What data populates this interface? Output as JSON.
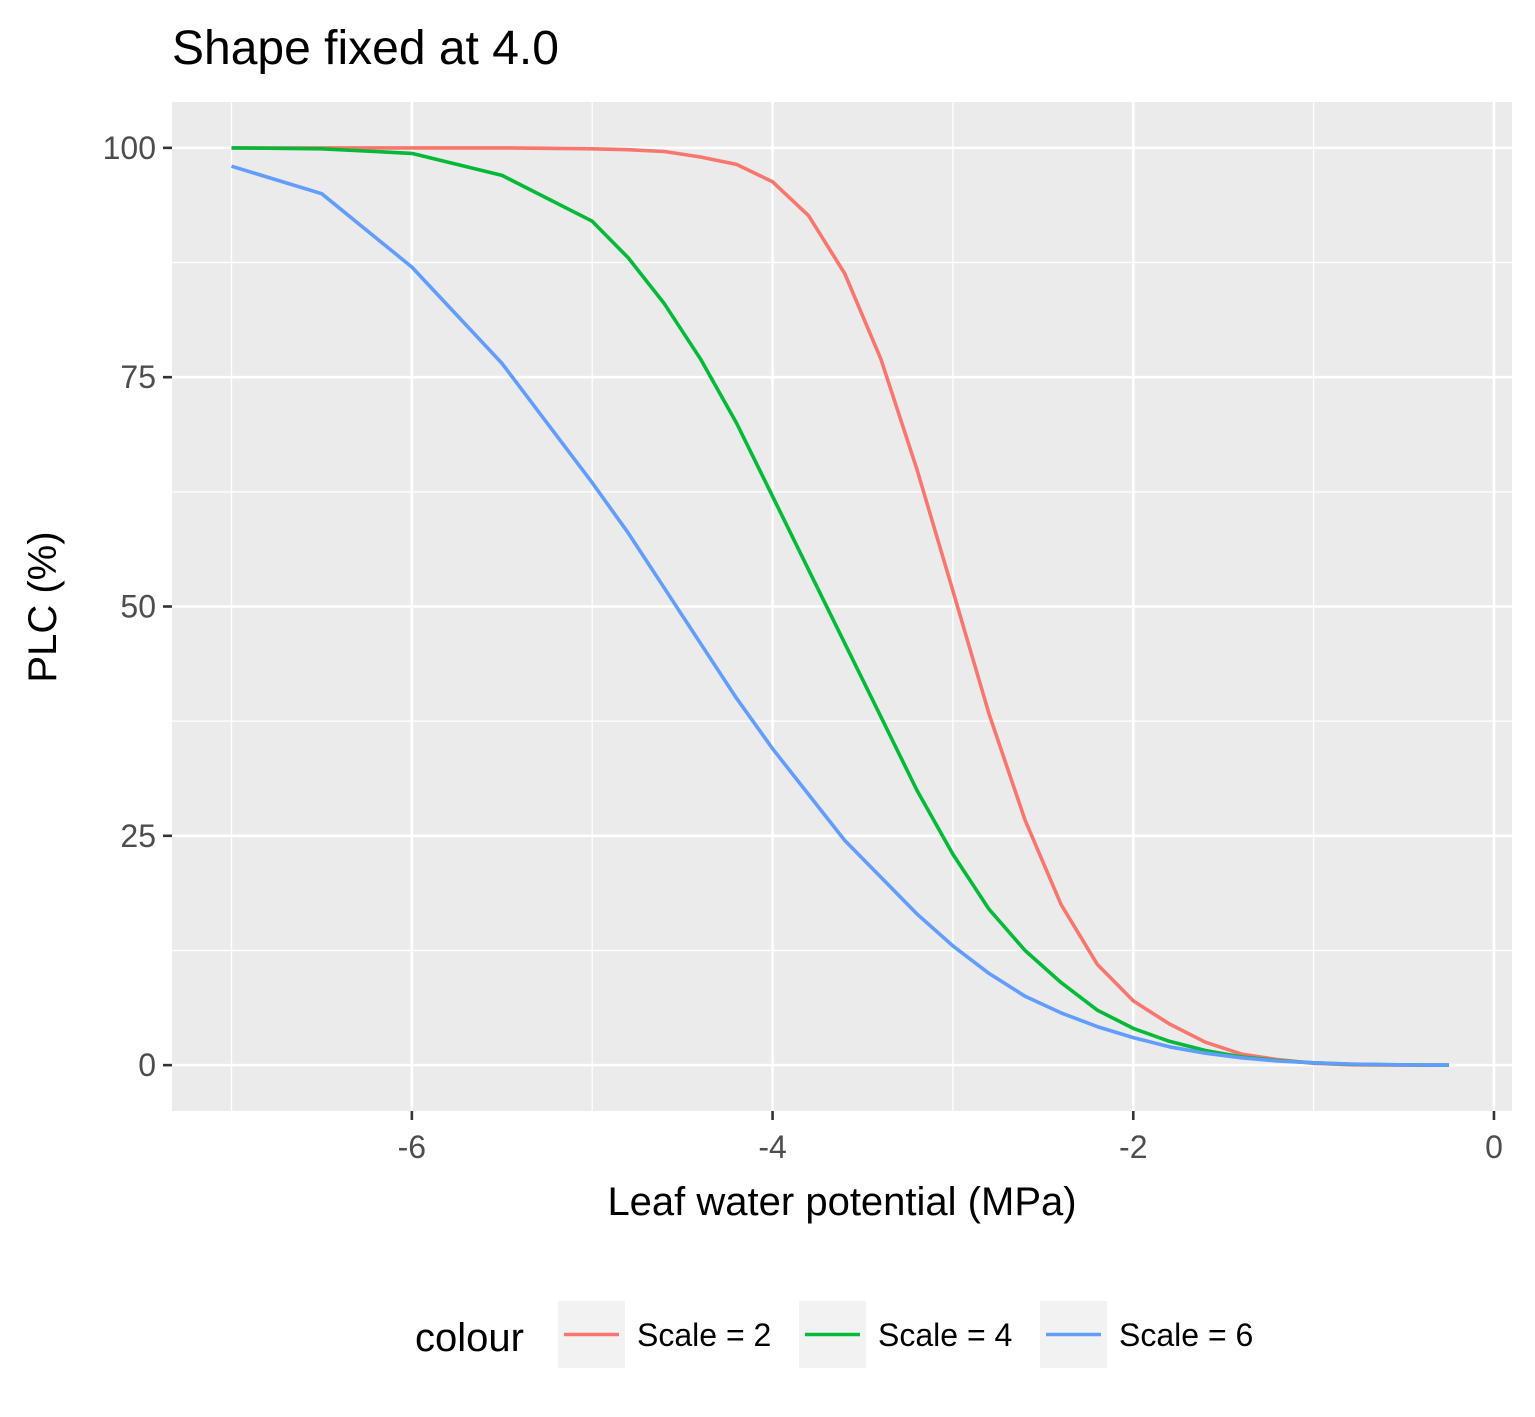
{
  "chart_data": {
    "type": "line",
    "title": "Shape fixed at 4.0",
    "xlabel": "Leaf water potential (MPa)",
    "ylabel": "PLC (%)",
    "xlim": [
      -7.33,
      0.1
    ],
    "ylim": [
      -5,
      105
    ],
    "x_ticks": [
      -6,
      -4,
      -2,
      0
    ],
    "x_tick_labels": [
      "-6",
      "-4",
      "-2",
      "0"
    ],
    "y_ticks": [
      0,
      25,
      50,
      75,
      100
    ],
    "y_tick_labels": [
      "0",
      "25",
      "50",
      "75",
      "100"
    ],
    "grid": true,
    "legend": {
      "title": "colour",
      "position": "bottom"
    },
    "series": [
      {
        "name": "Scale = 2",
        "color": "#F8766D",
        "x": [
          -7.0,
          -6.5,
          -6.0,
          -5.5,
          -5.0,
          -4.8,
          -4.6,
          -4.4,
          -4.2,
          -4.0,
          -3.8,
          -3.6,
          -3.4,
          -3.2,
          -3.0,
          -2.8,
          -2.6,
          -2.4,
          -2.2,
          -2.0,
          -1.8,
          -1.6,
          -1.4,
          -1.2,
          -1.0,
          -0.8,
          -0.6,
          -0.4,
          -0.25
        ],
        "y": [
          100,
          100,
          100,
          100,
          99.9,
          99.8,
          99.6,
          99.0,
          98.2,
          96.3,
          92.6,
          86.3,
          77.0,
          65.0,
          51.7,
          38.3,
          26.7,
          17.5,
          11.0,
          7.0,
          4.5,
          2.5,
          1.2,
          0.6,
          0.2,
          0.05,
          0,
          0,
          0
        ]
      },
      {
        "name": "Scale = 4",
        "color": "#00BA38",
        "x": [
          -7.0,
          -6.5,
          -6.0,
          -5.5,
          -5.0,
          -4.8,
          -4.6,
          -4.4,
          -4.2,
          -4.0,
          -3.8,
          -3.6,
          -3.4,
          -3.2,
          -3.0,
          -2.8,
          -2.6,
          -2.4,
          -2.2,
          -2.0,
          -1.8,
          -1.6,
          -1.4,
          -1.2,
          -1.0,
          -0.8,
          -0.6,
          -0.4,
          -0.25
        ],
        "y": [
          100,
          99.9,
          99.4,
          97.0,
          92.0,
          88.0,
          83.0,
          77.0,
          70.0,
          62.0,
          54.0,
          46.0,
          38.0,
          30.0,
          23.0,
          17.0,
          12.5,
          9.0,
          6.0,
          4.0,
          2.6,
          1.6,
          0.9,
          0.5,
          0.25,
          0.1,
          0.05,
          0,
          0
        ]
      },
      {
        "name": "Scale = 6",
        "color": "#619CFF",
        "x": [
          -7.0,
          -6.5,
          -6.0,
          -5.5,
          -5.0,
          -4.8,
          -4.6,
          -4.4,
          -4.2,
          -4.0,
          -3.8,
          -3.6,
          -3.4,
          -3.2,
          -3.0,
          -2.8,
          -2.6,
          -2.4,
          -2.2,
          -2.0,
          -1.8,
          -1.6,
          -1.4,
          -1.2,
          -1.0,
          -0.8,
          -0.6,
          -0.4,
          -0.25
        ],
        "y": [
          98,
          95,
          87,
          76.5,
          63.5,
          58,
          52,
          46,
          40,
          34.5,
          29.5,
          24.5,
          20.5,
          16.5,
          13.0,
          10.0,
          7.5,
          5.7,
          4.2,
          3.0,
          2.0,
          1.3,
          0.8,
          0.45,
          0.25,
          0.12,
          0.05,
          0.02,
          0
        ]
      }
    ]
  },
  "colors": {
    "panel_background": "#EBEBEB",
    "grid_major": "#FFFFFF",
    "tick_text": "#4D4D4D"
  }
}
